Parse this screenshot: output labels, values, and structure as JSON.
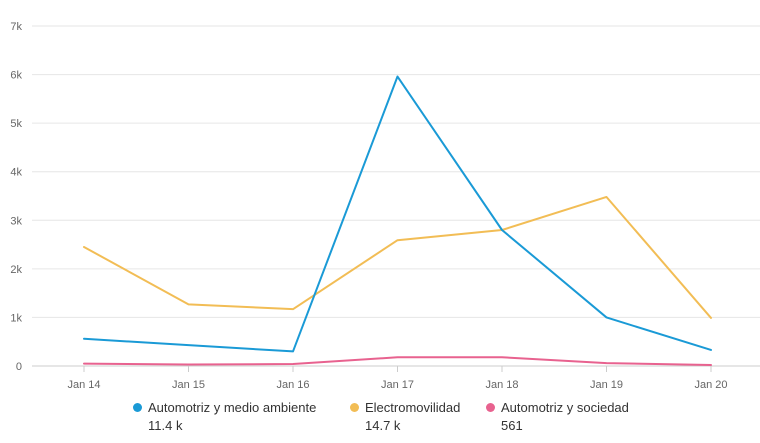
{
  "chart_data": {
    "type": "line",
    "title": "",
    "xlabel": "",
    "ylabel": "",
    "categories": [
      "Jan 14",
      "Jan 15",
      "Jan 16",
      "Jan 17",
      "Jan 18",
      "Jan 19",
      "Jan 20"
    ],
    "ylim": [
      0,
      7000
    ],
    "yticks": [
      0,
      1000,
      2000,
      3000,
      4000,
      5000,
      6000,
      7000
    ],
    "ytick_labels": [
      "0",
      "1k",
      "2k",
      "3k",
      "4k",
      "5k",
      "6k",
      "7k"
    ],
    "grid": true,
    "legend_position": "bottom",
    "series": [
      {
        "name": "Automotriz y medio ambiente",
        "total": "11.4 k",
        "color": "#1a9ad6",
        "values": [
          560,
          430,
          300,
          5960,
          2800,
          1000,
          330
        ]
      },
      {
        "name": "Electromovilidad",
        "total": "14.7 k",
        "color": "#f2bd55",
        "values": [
          2450,
          1270,
          1170,
          2590,
          2800,
          3480,
          990
        ]
      },
      {
        "name": "Automotriz y sociedad",
        "total": "561",
        "color": "#e8628f",
        "values": [
          50,
          30,
          40,
          180,
          180,
          60,
          20
        ]
      }
    ]
  }
}
